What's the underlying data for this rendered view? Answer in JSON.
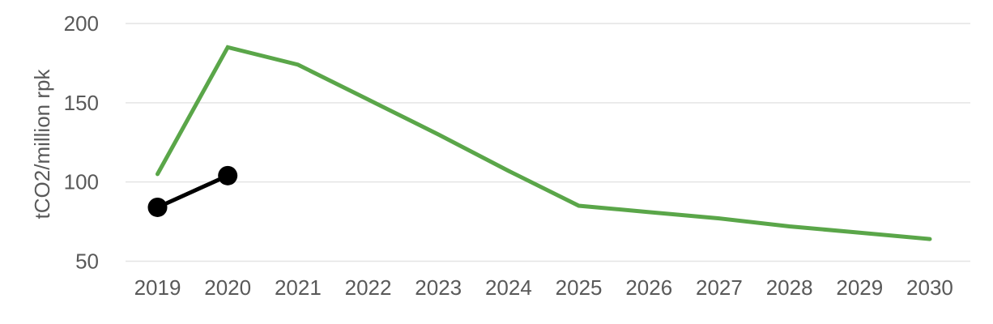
{
  "chart_data": {
    "type": "line",
    "title": "",
    "xlabel": "",
    "ylabel": "tCO2/million rpk",
    "categories": [
      "2019",
      "2020",
      "2021",
      "2022",
      "2023",
      "2024",
      "2025",
      "2026",
      "2027",
      "2028",
      "2029",
      "2030"
    ],
    "series": [
      {
        "name": "green-projection-line",
        "color": "#5aa649",
        "marker": "none",
        "line_width": 5,
        "values": [
          105,
          185,
          174,
          152,
          130,
          107,
          85,
          81,
          77,
          72,
          68,
          64
        ]
      },
      {
        "name": "black-actual-line",
        "color": "#000000",
        "marker": "circle",
        "marker_radius": 12,
        "line_width": 5,
        "values": [
          84,
          104,
          null,
          null,
          null,
          null,
          null,
          null,
          null,
          null,
          null,
          null
        ]
      }
    ],
    "ylim": [
      50,
      200
    ],
    "y_ticks": [
      200,
      150,
      100,
      50
    ],
    "grid": "horizontal-only",
    "legend": "none",
    "gridline_color": "#e4e4e4",
    "axis_text_color": "#595959"
  }
}
